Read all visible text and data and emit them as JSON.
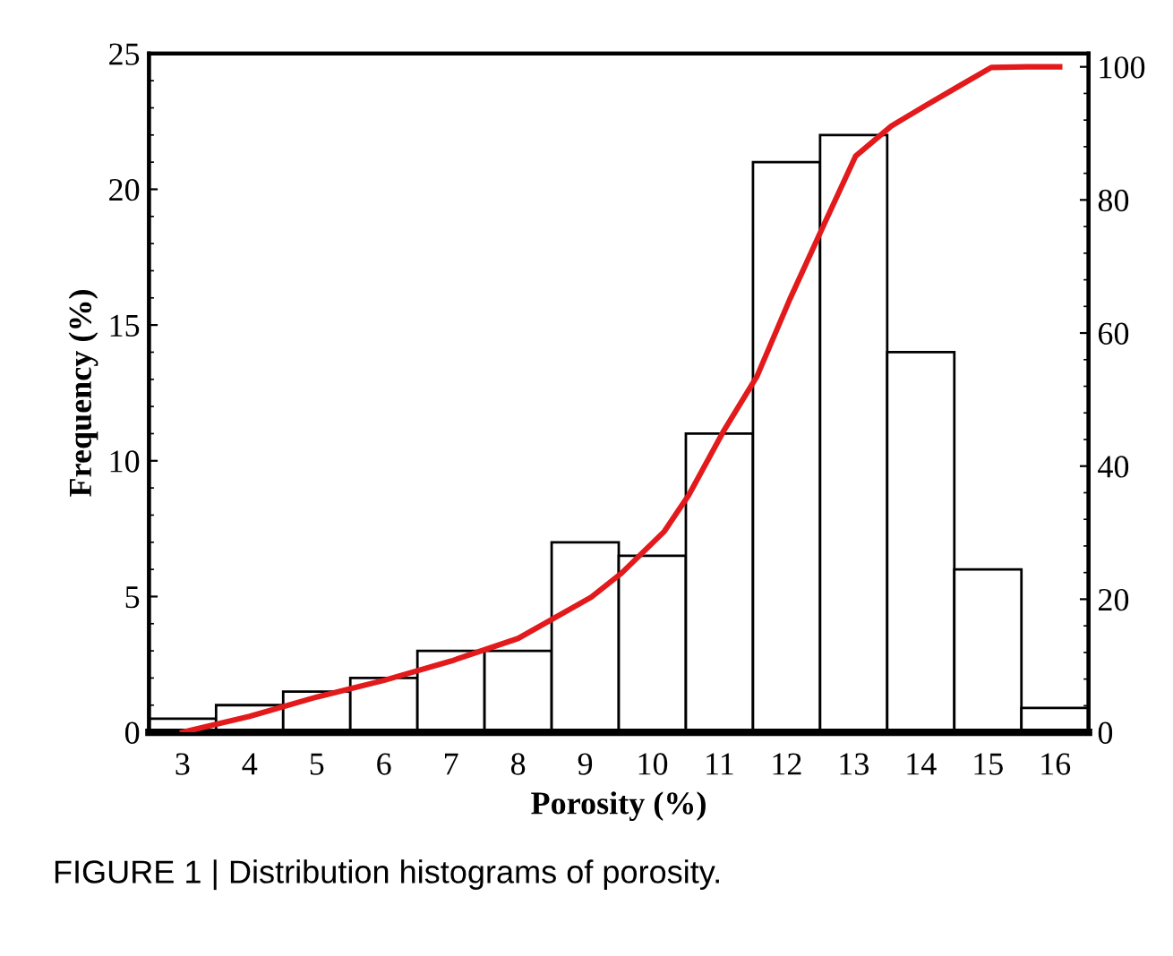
{
  "chart_data": {
    "type": "histogram",
    "xlabel": "Porosity (%)",
    "ylabel": "Frequency (%)",
    "bins": [
      2.5,
      3.5,
      4.5,
      5.5,
      6.5,
      7.5,
      8.5,
      9.5,
      10.5,
      11.5,
      12.5,
      13.5,
      14.5,
      15.5,
      16.5
    ],
    "series": [
      {
        "color": "#ffffff",
        "values": [
          0.5,
          1,
          1.5,
          2,
          3,
          3,
          7,
          6.5,
          11,
          21,
          22,
          14,
          6,
          0.9
        ]
      },
      {
        "type": "line",
        "axis": "y2",
        "color": "#e31a1c",
        "x": [
          3.0,
          4.0,
          5.0,
          6.0,
          7.0,
          8.0,
          9.09,
          9.54,
          10.18,
          10.54,
          11.07,
          11.56,
          12.05,
          12.54,
          13.03,
          13.56,
          14.09,
          14.62,
          15.05,
          15.58,
          16.07
        ],
        "values": [
          0,
          2.4,
          5.3,
          7.8,
          10.7,
          14.1,
          20.3,
          23.9,
          30.2,
          35.6,
          45.4,
          53.5,
          65.1,
          75.9,
          86.6,
          91.1,
          94.3,
          97.4,
          99.9,
          100,
          100
        ]
      }
    ],
    "xlim": [
      2.5,
      16.5
    ],
    "xticks": [
      3,
      4,
      5,
      6,
      7,
      8,
      9,
      10,
      11,
      12,
      13,
      14,
      15,
      16
    ],
    "ylim": [
      0,
      25
    ],
    "yticks": [
      0,
      5,
      10,
      15,
      20,
      25
    ],
    "y2lim": [
      0,
      102
    ],
    "y2ticks": [
      0,
      20,
      40,
      60,
      80,
      100
    ],
    "grid": false,
    "legend": false,
    "annotations": [
      "FIGURE 1 | Distribution histograms of porosity."
    ]
  }
}
